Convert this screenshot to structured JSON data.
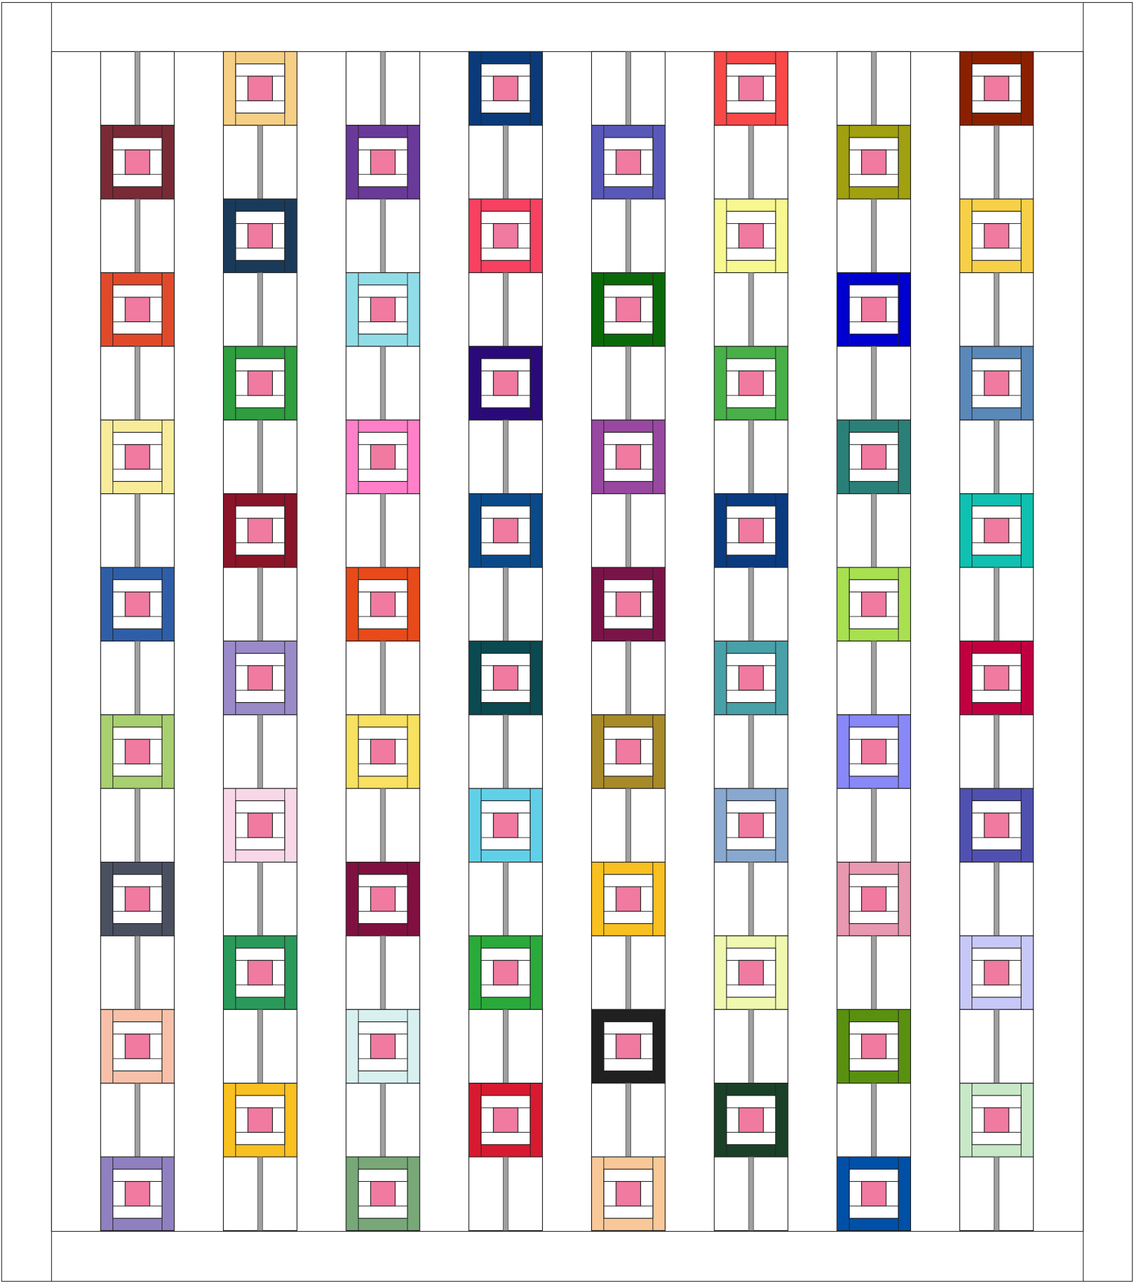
{
  "quilt": {
    "columns": [
      [
        "#7a2a35",
        "#e04a2a",
        "#f8ec9a",
        "#2f5ea8",
        "#a8cf70",
        "#4a5060",
        "#f8c0a8",
        "#9080c0"
      ],
      [
        "#f6cf85",
        "#1a3a5a",
        "#2e9e3e",
        "#8a1428",
        "#9a8ac8",
        "#f8d8e8",
        "#2a9a5a",
        "#f8c020"
      ],
      [
        "#6a3a9a",
        "#90dde8",
        "#ff80c8",
        "#e84a1a",
        "#f8e060",
        "#801040",
        "#d8f0f0",
        "#78a878"
      ],
      [
        "#0a3a7a",
        "#f84060",
        "#2a0a7a",
        "#0a4a8a",
        "#0a4a50",
        "#60d0e8",
        "#2aaa3a",
        "#d81a30"
      ],
      [
        "#5858b8",
        "#0a6a0a",
        "#9848a0",
        "#7a1448",
        "#a88a28",
        "#f8c020",
        "#202020",
        "#f8c898"
      ],
      [
        "#f84848",
        "#f8f890",
        "#48b048",
        "#0a3a80",
        "#48a0a8",
        "#88a8d0",
        "#f0f8b0",
        "#1a4028"
      ],
      [
        "#a0a010",
        "#0000d0",
        "#2a8078",
        "#a8e050",
        "#8888f8",
        "#e898b0",
        "#5a9010",
        "#0050a8"
      ],
      [
        "#8a2000",
        "#f8d048",
        "#5a88b8",
        "#10c0b0",
        "#c00040",
        "#5050b0",
        "#c8c8f8",
        "#c8e8c8"
      ]
    ]
  }
}
